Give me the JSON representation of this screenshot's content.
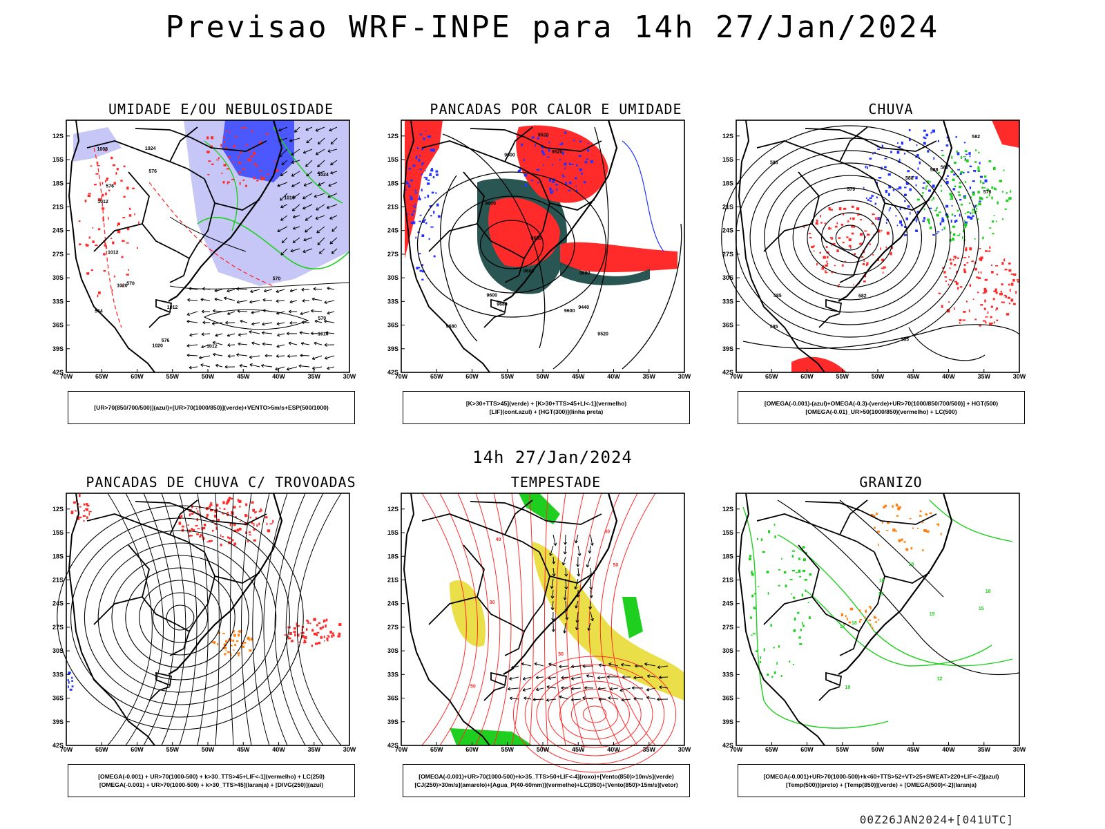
{
  "header": {
    "title": "Previsao WRF-INPE  para 14h 27/Jan/2024",
    "row_label": "14h 27/Jan/2024",
    "footer": "00Z26JAN2024+[041UTC]"
  },
  "axes": {
    "lat_labels": [
      "12S",
      "15S",
      "18S",
      "21S",
      "24S",
      "27S",
      "30S",
      "33S",
      "36S",
      "39S",
      "42S"
    ],
    "lon_labels": [
      "70W",
      "65W",
      "60W",
      "55W",
      "50W",
      "45W",
      "40W",
      "35W",
      "30W"
    ]
  },
  "colors": {
    "coast": "#000000",
    "red": "#ff2a2a",
    "green": "#1fcf1f",
    "blue": "#2233ff",
    "lavender": "#b8b8f5",
    "dark_teal": "#1d4d4a",
    "yellow": "#e8dc35",
    "orange": "#ff7f10"
  },
  "panels": [
    {
      "title": "UMIDADE E/OU NEBULOSIDADE",
      "legend": [
        "[UR>70(850/700/500)](azul)+[UR>70(1000/850)](verde)+VENTO>5m/s+ESP(500/1000)"
      ],
      "labels": [
        "1016",
        "1012",
        "1008",
        "1012",
        "1012",
        "1016",
        "1020",
        "1020",
        "1024",
        "1024",
        "1012",
        "570",
        "570",
        "576",
        "576",
        "564",
        "570",
        "576"
      ]
    },
    {
      "title": "PANCADAS POR CALOR E UMIDADE",
      "legend": [
        "[K>30+TTS>45](verde) + [K>30+TTS>45+LI<-1](vermelho)",
        "[LIF](cont.azul) + [HGT(300)](linha preta)"
      ],
      "labels": [
        "9680",
        "9680",
        "9680",
        "9600",
        "9600",
        "9520",
        "9440",
        "9520",
        "9600",
        "9600",
        "9520",
        "9600",
        "9680"
      ]
    },
    {
      "title": "CHUVA",
      "legend": [
        "[OMEGA(-0.001)-(azul)+OMEGA(-0.3)-(verde)+UR>70(1000/850/700/500)] + HGT(500)",
        "[OMEGA(-0.01)_UR>50(1000/850)(vermelho) + LC(500)"
      ],
      "labels": [
        "585",
        "579",
        "576",
        "582",
        "585",
        "588",
        "588",
        "585",
        "585",
        "582",
        "582"
      ]
    },
    {
      "title": "PANCADAS DE CHUVA C/ TROVOADAS",
      "legend": [
        "[OMEGA(-0.001) + UR>70(1000-500) + k>30_TTS>45+LIF<-1](vermelho) + LC(250)",
        "[OMEGA(-0.001) + UR>70(1000-500) + k>30_TTS>45](laranja) + [DIVG(250)](azul)"
      ],
      "labels": []
    },
    {
      "title": "TEMPESTADE",
      "legend": [
        "[OMEGA(-0.001)+UR>70(1000-500)+k>35_TTS>50+LIF<-4](roxo)+[Vento(850)>10m/s](verde)",
        "[CJ(250)>30m/s](amarelo)+[Agua_P(40-60mm)](vermelho)+LC(850)+[Vento(850)>15m/s](vetor)"
      ],
      "labels": [
        "50",
        "40",
        "40",
        "50",
        "50",
        "30"
      ]
    },
    {
      "title": "GRANIZO",
      "legend": [
        "[OMEGA(-0.001)+UR>70(1000-500)+k<60+TTS>52+VT>25+SWEAT>220+LIF<-2](azul)",
        "[Temp(500)](preto) + [Temp(850)](verde) + [OMEGA(500)<-2](laranja)"
      ],
      "labels": [
        "18",
        "18",
        "15",
        "18",
        "12",
        "15",
        "18",
        "18",
        "15",
        "12"
      ]
    }
  ]
}
